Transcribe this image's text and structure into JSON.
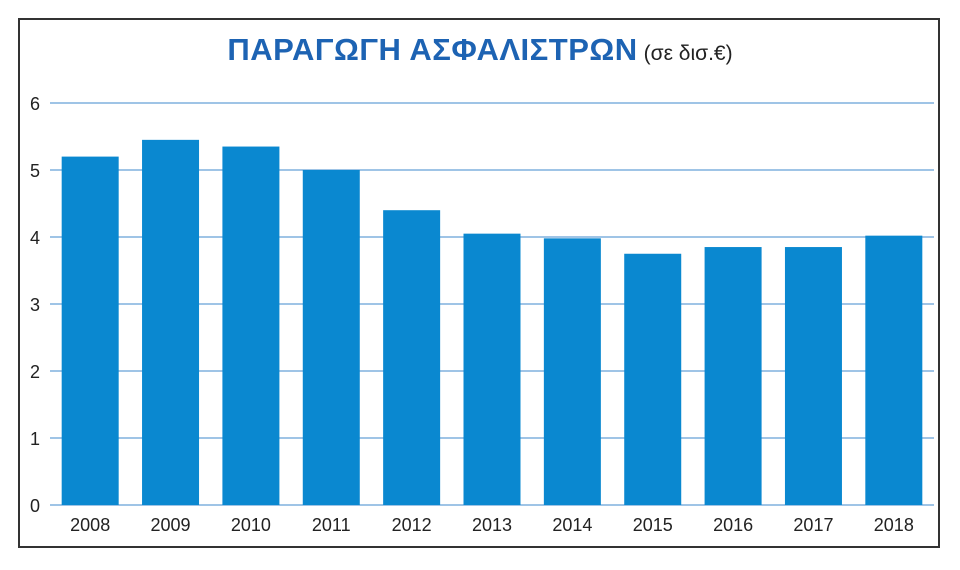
{
  "chart_data": {
    "type": "bar",
    "title": "ΠΑΡΑΓΩΓΗ ΑΣΦΑΛΙΣΤΡΩΝ",
    "subtitle": "(σε δισ.€)",
    "categories": [
      "2008",
      "2009",
      "2010",
      "2011",
      "2012",
      "2013",
      "2014",
      "2015",
      "2016",
      "2017",
      "2018"
    ],
    "values": [
      5.2,
      5.45,
      5.35,
      5.0,
      4.4,
      4.05,
      3.98,
      3.75,
      3.85,
      3.85,
      4.02
    ],
    "ylim": [
      0,
      6
    ],
    "yticks": [
      "0",
      "1",
      "2",
      "3",
      "4",
      "5",
      "6"
    ],
    "xlabel": "",
    "ylabel": "",
    "grid": true,
    "colors": {
      "bar": "#0a88d0",
      "grid": "#9fc4e6",
      "title": "#1d63b3",
      "text": "#222222"
    }
  }
}
